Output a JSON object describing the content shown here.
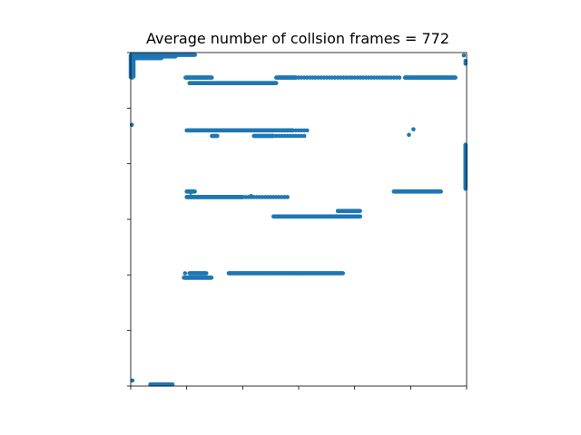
{
  "chart_data": {
    "type": "scatter",
    "title": "Average number of collsion frames = 772",
    "xlabel": "",
    "ylabel": "",
    "xlim": [
      0,
      6
    ],
    "ylim": [
      0,
      6
    ],
    "xticks": [
      0,
      1,
      2,
      3,
      4,
      5,
      6
    ],
    "yticks": [
      0,
      1,
      2,
      3,
      4,
      5,
      6
    ],
    "tick_labels_shown": false,
    "grid": false,
    "legend": "none",
    "marker_color": "#1f77b4",
    "segments": [
      {
        "x0": 0.0,
        "x1": 0.05,
        "y0": 5.95,
        "y1": 5.55,
        "vertical": true
      },
      {
        "x0": 0.03,
        "x1": 1.15,
        "y": 5.96
      },
      {
        "x0": 0.02,
        "x1": 0.8,
        "y": 5.93
      },
      {
        "x0": 0.02,
        "x1": 0.55,
        "y": 5.9
      },
      {
        "x0": 0.98,
        "x1": 1.45,
        "y": 5.55
      },
      {
        "x0": 1.05,
        "x1": 2.6,
        "y": 5.45
      },
      {
        "x0": 2.6,
        "x1": 2.95,
        "y": 5.55
      },
      {
        "x0": 2.95,
        "x1": 4.8,
        "y": 5.55,
        "sparse": true
      },
      {
        "x0": 4.9,
        "x1": 5.8,
        "y": 5.55
      },
      {
        "x0": 1.0,
        "x1": 2.9,
        "y": 4.6
      },
      {
        "x0": 2.9,
        "x1": 3.15,
        "y": 4.6,
        "sparse": true
      },
      {
        "x0": 1.45,
        "x1": 1.55,
        "y": 4.5
      },
      {
        "x0": 2.2,
        "x1": 2.55,
        "y": 4.5
      },
      {
        "x0": 2.55,
        "x1": 3.1,
        "y": 4.5,
        "sparse": true
      },
      {
        "x0": 1.0,
        "x1": 1.15,
        "y": 3.5
      },
      {
        "x0": 1.0,
        "x1": 2.0,
        "y": 3.4
      },
      {
        "x0": 2.0,
        "x1": 2.8,
        "y": 3.4,
        "sparse": true
      },
      {
        "x0": 4.7,
        "x1": 5.55,
        "y": 3.5
      },
      {
        "x0": 2.55,
        "x1": 4.1,
        "y": 3.05
      },
      {
        "x0": 3.7,
        "x1": 4.1,
        "y": 3.15
      },
      {
        "x0": 0.95,
        "x1": 1.45,
        "y": 1.95
      },
      {
        "x0": 1.05,
        "x1": 1.35,
        "y": 2.03
      },
      {
        "x0": 1.75,
        "x1": 3.8,
        "y": 2.03
      },
      {
        "x0": 0.35,
        "x1": 0.75,
        "y": 0.03
      }
    ],
    "points": [
      {
        "x": 0.02,
        "y": 4.7
      },
      {
        "x": 0.03,
        "y": 0.1
      },
      {
        "x": 5.95,
        "y": 5.95
      },
      {
        "x": 5.98,
        "y": 5.85
      },
      {
        "x": 5.98,
        "y": 5.8
      },
      {
        "x": 5.05,
        "y": 4.62
      },
      {
        "x": 4.97,
        "y": 4.52
      },
      {
        "x": 1.07,
        "y": 3.48
      },
      {
        "x": 2.15,
        "y": 3.42
      },
      {
        "x": 0.97,
        "y": 2.03
      }
    ],
    "vertical_segments": [
      {
        "x": 5.98,
        "y0": 4.35,
        "y1": 3.55
      }
    ]
  }
}
